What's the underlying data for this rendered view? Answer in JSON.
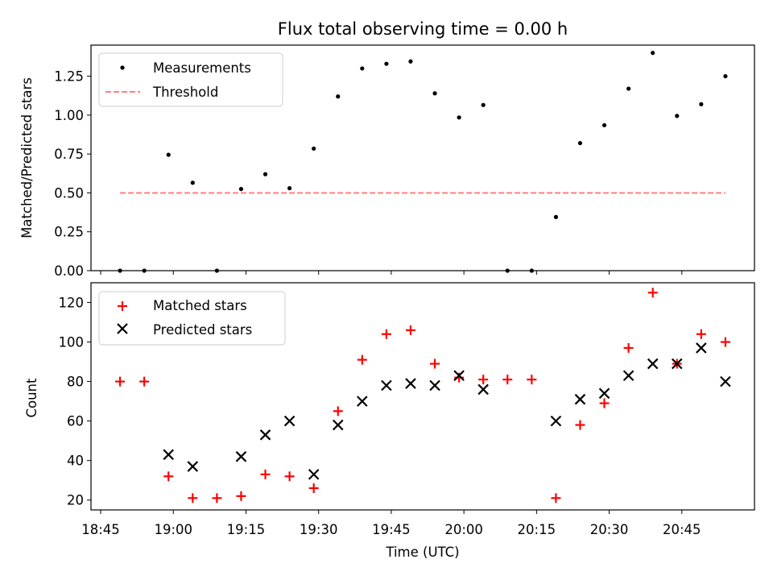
{
  "colors": {
    "measurement": "#000000",
    "threshold": "#ff7f7f",
    "matched": "#ff0000",
    "predicted": "#000000"
  },
  "chart_data": [
    {
      "type": "scatter",
      "title": "Flux total observing time = 0.00 h",
      "xlabel": "",
      "ylabel": "Matched/Predicted stars",
      "xlim": [
        "18:43",
        "21:00"
      ],
      "ylim": [
        0,
        1.45
      ],
      "yticks": [
        "0.00",
        "0.25",
        "0.50",
        "0.75",
        "1.00",
        "1.25"
      ],
      "x_tick_labels_shown": false,
      "grid": false,
      "legend": "top-left",
      "series": [
        {
          "name": "Measurements",
          "marker": "dot",
          "x": [
            "18:49",
            "18:54",
            "18:59",
            "19:04",
            "19:09",
            "19:14",
            "19:19",
            "19:24",
            "19:29",
            "19:34",
            "19:39",
            "19:44",
            "19:49",
            "19:54",
            "19:59",
            "20:04",
            "20:09",
            "20:14",
            "20:19",
            "20:24",
            "20:29",
            "20:34",
            "20:39",
            "20:44",
            "20:49",
            "20:54"
          ],
          "values": [
            0.0,
            0.0,
            0.745,
            0.565,
            0.0,
            0.525,
            0.62,
            0.53,
            0.785,
            1.12,
            1.3,
            1.33,
            1.345,
            1.14,
            0.985,
            1.065,
            0.0,
            0.0,
            0.345,
            0.82,
            0.935,
            1.17,
            1.4,
            0.995,
            1.07,
            1.25
          ]
        },
        {
          "name": "Threshold",
          "style": "dashed",
          "x": [
            "18:49",
            "20:54"
          ],
          "values": [
            0.5,
            0.5
          ]
        }
      ]
    },
    {
      "type": "scatter",
      "title": "",
      "xlabel": "Time (UTC)",
      "ylabel": "Count",
      "xlim": [
        "18:43",
        "21:00"
      ],
      "ylim": [
        15,
        130
      ],
      "yticks": [
        "20",
        "40",
        "60",
        "80",
        "100",
        "120"
      ],
      "xticks": [
        "18:45",
        "19:00",
        "19:15",
        "19:30",
        "19:45",
        "20:00",
        "20:15",
        "20:30",
        "20:45"
      ],
      "grid": false,
      "legend": "top-left",
      "series": [
        {
          "name": "Matched stars",
          "marker": "plus",
          "x": [
            "18:49",
            "18:54",
            "18:59",
            "19:04",
            "19:09",
            "19:14",
            "19:19",
            "19:24",
            "19:29",
            "19:34",
            "19:39",
            "19:44",
            "19:49",
            "19:54",
            "19:59",
            "20:04",
            "20:09",
            "20:14",
            "20:19",
            "20:24",
            "20:29",
            "20:34",
            "20:39",
            "20:44",
            "20:49",
            "20:54"
          ],
          "values": [
            80,
            80,
            32,
            21,
            21,
            22,
            33,
            32,
            26,
            65,
            91,
            104,
            106,
            89,
            82,
            81,
            81,
            81,
            21,
            58,
            69,
            97,
            125,
            89,
            104,
            100
          ]
        },
        {
          "name": "Predicted stars",
          "marker": "cross",
          "x": [
            "18:59",
            "19:04",
            "19:14",
            "19:19",
            "19:24",
            "19:29",
            "19:34",
            "19:39",
            "19:44",
            "19:49",
            "19:54",
            "19:59",
            "20:04",
            "20:19",
            "20:24",
            "20:29",
            "20:34",
            "20:39",
            "20:44",
            "20:49",
            "20:54"
          ],
          "values": [
            43,
            37,
            42,
            53,
            60,
            33,
            58,
            70,
            78,
            79,
            78,
            83,
            76,
            60,
            71,
            74,
            83,
            89,
            89,
            97,
            80
          ]
        }
      ]
    }
  ]
}
